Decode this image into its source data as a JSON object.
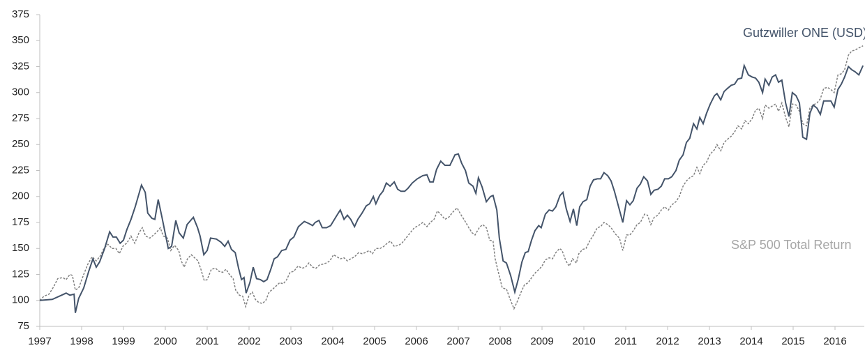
{
  "chart_data": {
    "type": "line",
    "xlim": [
      1997,
      2016.7
    ],
    "ylim": [
      75,
      375
    ],
    "xticks": [
      1997,
      1998,
      1999,
      2000,
      2001,
      2002,
      2003,
      2004,
      2005,
      2006,
      2007,
      2008,
      2009,
      2010,
      2011,
      2012,
      2013,
      2014,
      2015,
      2016
    ],
    "yticks": [
      75,
      100,
      125,
      150,
      175,
      200,
      225,
      250,
      275,
      300,
      325,
      350,
      375
    ],
    "series": [
      {
        "name": "Gutzwiller ONE (USD)",
        "color": "#44546a",
        "dashed": false,
        "x": [
          1997.0,
          1997.3,
          1997.52,
          1997.63,
          1997.72,
          1997.82,
          1997.85,
          1997.93,
          1998.05,
          1998.17,
          1998.27,
          1998.35,
          1998.43,
          1998.55,
          1998.67,
          1998.75,
          1998.83,
          1998.92,
          1999.0,
          1999.08,
          1999.18,
          1999.28,
          1999.43,
          1999.52,
          1999.58,
          1999.68,
          1999.75,
          1999.83,
          1999.92,
          1999.98,
          2000.07,
          2000.15,
          2000.25,
          2000.33,
          2000.43,
          2000.52,
          2000.67,
          2000.77,
          2000.83,
          2000.92,
          2001.0,
          2001.08,
          2001.22,
          2001.33,
          2001.42,
          2001.5,
          2001.58,
          2001.67,
          2001.75,
          2001.82,
          2001.88,
          2001.93,
          2002.02,
          2002.1,
          2002.18,
          2002.27,
          2002.35,
          2002.43,
          2002.52,
          2002.6,
          2002.68,
          2002.78,
          2002.88,
          2002.98,
          2003.07,
          2003.18,
          2003.32,
          2003.43,
          2003.52,
          2003.58,
          2003.67,
          2003.75,
          2003.85,
          2003.95,
          2004.07,
          2004.18,
          2004.27,
          2004.35,
          2004.43,
          2004.52,
          2004.6,
          2004.7,
          2004.8,
          2004.88,
          2004.97,
          2005.03,
          2005.12,
          2005.2,
          2005.28,
          2005.37,
          2005.47,
          2005.55,
          2005.63,
          2005.72,
          2005.8,
          2005.9,
          2006.02,
          2006.15,
          2006.25,
          2006.32,
          2006.4,
          2006.48,
          2006.58,
          2006.68,
          2006.8,
          2006.92,
          2007.0,
          2007.08,
          2007.17,
          2007.25,
          2007.35,
          2007.42,
          2007.48,
          2007.57,
          2007.67,
          2007.77,
          2007.83,
          2007.92,
          2007.98,
          2008.07,
          2008.15,
          2008.25,
          2008.35,
          2008.43,
          2008.52,
          2008.6,
          2008.67,
          2008.75,
          2008.83,
          2008.92,
          2008.98,
          2009.08,
          2009.17,
          2009.25,
          2009.33,
          2009.43,
          2009.5,
          2009.58,
          2009.67,
          2009.75,
          2009.83,
          2009.9,
          2009.98,
          2010.07,
          2010.15,
          2010.23,
          2010.32,
          2010.4,
          2010.48,
          2010.57,
          2010.65,
          2010.73,
          2010.83,
          2010.93,
          2011.02,
          2011.1,
          2011.18,
          2011.27,
          2011.35,
          2011.43,
          2011.52,
          2011.6,
          2011.68,
          2011.77,
          2011.85,
          2011.93,
          2012.02,
          2012.1,
          2012.2,
          2012.28,
          2012.37,
          2012.45,
          2012.53,
          2012.62,
          2012.7,
          2012.77,
          2012.85,
          2012.93,
          2013.02,
          2013.12,
          2013.18,
          2013.27,
          2013.35,
          2013.43,
          2013.52,
          2013.6,
          2013.68,
          2013.77,
          2013.83,
          2013.93,
          2014.02,
          2014.1,
          2014.18,
          2014.27,
          2014.33,
          2014.42,
          2014.5,
          2014.58,
          2014.65,
          2014.73,
          2014.82,
          2014.9,
          2014.98,
          2015.07,
          2015.15,
          2015.23,
          2015.32,
          2015.4,
          2015.48,
          2015.57,
          2015.65,
          2015.73,
          2015.82,
          2015.9,
          2015.98,
          2016.07,
          2016.15,
          2016.23,
          2016.32,
          2016.4,
          2016.48,
          2016.57,
          2016.67
        ],
        "values": [
          100,
          101,
          105,
          107,
          105,
          106,
          88,
          102,
          112,
          128,
          140,
          132,
          137,
          150,
          166,
          161,
          161,
          155,
          158,
          168,
          178,
          190,
          211,
          204,
          184,
          179,
          178,
          197,
          180,
          168,
          150,
          152,
          177,
          165,
          160,
          173,
          180,
          170,
          162,
          144,
          148,
          160,
          159,
          156,
          152,
          157,
          149,
          146,
          131,
          120,
          122,
          107,
          117,
          132,
          121,
          120,
          118,
          120,
          130,
          140,
          142,
          148,
          149,
          158,
          161,
          171,
          176,
          174,
          172,
          175,
          177,
          170,
          170,
          172,
          180,
          187,
          178,
          182,
          178,
          171,
          178,
          184,
          191,
          193,
          200,
          193,
          201,
          205,
          213,
          210,
          214,
          207,
          205,
          205,
          208,
          213,
          217,
          220,
          221,
          214,
          214,
          226,
          234,
          230,
          230,
          240,
          241,
          232,
          225,
          213,
          210,
          203,
          218,
          209,
          195,
          200,
          201,
          187,
          160,
          138,
          136,
          124,
          108,
          120,
          137,
          146,
          147,
          158,
          167,
          172,
          170,
          183,
          187,
          186,
          190,
          201,
          204,
          188,
          176,
          188,
          172,
          190,
          195,
          197,
          210,
          216,
          217,
          217,
          223,
          220,
          215,
          205,
          190,
          175,
          196,
          192,
          196,
          208,
          212,
          219,
          215,
          202,
          206,
          207,
          210,
          217,
          217,
          219,
          225,
          235,
          240,
          252,
          256,
          270,
          265,
          276,
          270,
          280,
          289,
          297,
          299,
          293,
          301,
          304,
          307,
          308,
          313,
          314,
          326,
          317,
          315,
          314,
          310,
          300,
          313,
          307,
          315,
          317,
          310,
          312,
          290,
          277,
          300,
          297,
          290,
          257,
          255,
          280,
          288,
          285,
          279,
          292,
          292,
          292,
          286,
          303,
          308,
          315,
          325,
          322,
          320,
          317,
          326
        ]
      },
      {
        "name": "S&P 500 Total Return",
        "color": "#808080",
        "dashed": true,
        "x": [
          1997.0,
          1997.1,
          1997.22,
          1997.33,
          1997.43,
          1997.55,
          1997.63,
          1997.72,
          1997.78,
          1997.85,
          1997.93,
          1998.05,
          1998.15,
          1998.25,
          1998.35,
          1998.45,
          1998.53,
          1998.63,
          1998.73,
          1998.82,
          1998.9,
          1999.0,
          1999.08,
          1999.18,
          1999.27,
          1999.37,
          1999.45,
          1999.53,
          1999.63,
          1999.72,
          1999.8,
          1999.88,
          1999.95,
          2000.05,
          2000.13,
          2000.22,
          2000.32,
          2000.38,
          2000.45,
          2000.53,
          2000.62,
          2000.7,
          2000.78,
          2000.85,
          2000.93,
          2001.0,
          2001.1,
          2001.2,
          2001.28,
          2001.37,
          2001.45,
          2001.53,
          2001.62,
          2001.68,
          2001.77,
          2001.85,
          2001.92,
          2002.0,
          2002.08,
          2002.15,
          2002.23,
          2002.32,
          2002.4,
          2002.48,
          2002.57,
          2002.65,
          2002.73,
          2002.82,
          2002.9,
          2002.98,
          2003.07,
          2003.17,
          2003.27,
          2003.35,
          2003.43,
          2003.52,
          2003.6,
          2003.68,
          2003.77,
          2003.85,
          2003.93,
          2004.02,
          2004.1,
          2004.18,
          2004.27,
          2004.35,
          2004.43,
          2004.52,
          2004.62,
          2004.7,
          2004.78,
          2004.87,
          2004.95,
          2005.03,
          2005.13,
          2005.22,
          2005.3,
          2005.38,
          2005.47,
          2005.57,
          2005.65,
          2005.75,
          2005.85,
          2005.95,
          2006.05,
          2006.15,
          2006.25,
          2006.33,
          2006.42,
          2006.5,
          2006.58,
          2006.68,
          2006.77,
          2006.87,
          2006.97,
          2007.07,
          2007.15,
          2007.25,
          2007.33,
          2007.4,
          2007.5,
          2007.58,
          2007.67,
          2007.75,
          2007.83,
          2007.88,
          2007.97,
          2008.05,
          2008.15,
          2008.23,
          2008.33,
          2008.42,
          2008.5,
          2008.58,
          2008.67,
          2008.77,
          2008.85,
          2008.93,
          2009.0,
          2009.08,
          2009.17,
          2009.25,
          2009.33,
          2009.42,
          2009.48,
          2009.57,
          2009.65,
          2009.73,
          2009.82,
          2009.88,
          2009.97,
          2010.05,
          2010.15,
          2010.23,
          2010.32,
          2010.4,
          2010.48,
          2010.57,
          2010.65,
          2010.75,
          2010.85,
          2010.93,
          2011.02,
          2011.1,
          2011.18,
          2011.27,
          2011.35,
          2011.45,
          2011.52,
          2011.6,
          2011.68,
          2011.77,
          2011.85,
          2011.93,
          2012.02,
          2012.1,
          2012.2,
          2012.28,
          2012.37,
          2012.45,
          2012.53,
          2012.62,
          2012.7,
          2012.77,
          2012.85,
          2012.93,
          2013.02,
          2013.12,
          2013.18,
          2013.27,
          2013.35,
          2013.43,
          2013.52,
          2013.6,
          2013.68,
          2013.77,
          2013.85,
          2013.93,
          2014.02,
          2014.1,
          2014.18,
          2014.27,
          2014.33,
          2014.42,
          2014.5,
          2014.58,
          2014.65,
          2014.73,
          2014.82,
          2014.9,
          2014.98,
          2015.07,
          2015.15,
          2015.23,
          2015.32,
          2015.4,
          2015.48,
          2015.57,
          2015.65,
          2015.73,
          2015.82,
          2015.9,
          2015.98,
          2016.07,
          2016.15,
          2016.23,
          2016.32,
          2016.4,
          2016.48,
          2016.57,
          2016.67
        ],
        "values": [
          100,
          104,
          106,
          113,
          121,
          122,
          120,
          125,
          124,
          110,
          112,
          125,
          135,
          142,
          138,
          143,
          150,
          154,
          150,
          150,
          145,
          153,
          155,
          162,
          155,
          165,
          170,
          162,
          160,
          163,
          166,
          170,
          162,
          160,
          148,
          153,
          148,
          138,
          132,
          140,
          144,
          141,
          138,
          130,
          119,
          120,
          130,
          131,
          128,
          127,
          130,
          125,
          121,
          110,
          105,
          104,
          94,
          105,
          108,
          101,
          98,
          97,
          100,
          108,
          111,
          114,
          117,
          116,
          120,
          127,
          128,
          133,
          131,
          132,
          136,
          132,
          131,
          134,
          135,
          136,
          138,
          144,
          142,
          140,
          141,
          138,
          140,
          142,
          146,
          145,
          146,
          148,
          145,
          150,
          150,
          152,
          155,
          157,
          152,
          153,
          155,
          160,
          165,
          170,
          172,
          175,
          171,
          175,
          178,
          186,
          183,
          178,
          180,
          185,
          189,
          182,
          177,
          170,
          165,
          163,
          170,
          173,
          170,
          158,
          157,
          140,
          125,
          112,
          111,
          102,
          92,
          100,
          108,
          115,
          117,
          123,
          127,
          130,
          133,
          139,
          141,
          140,
          146,
          150,
          148,
          138,
          133,
          140,
          136,
          145,
          149,
          150,
          158,
          163,
          170,
          171,
          175,
          173,
          170,
          164,
          160,
          148,
          163,
          163,
          167,
          173,
          175,
          183,
          182,
          173,
          180,
          182,
          187,
          190,
          187,
          192,
          195,
          200,
          210,
          215,
          218,
          220,
          228,
          222,
          230,
          233,
          241,
          245,
          250,
          244,
          252,
          255,
          258,
          262,
          268,
          265,
          273,
          270,
          275,
          283,
          285,
          275,
          288,
          285,
          287,
          289,
          282,
          290,
          276,
          267,
          289,
          288,
          282,
          270,
          268,
          285,
          288,
          290,
          294,
          304,
          305,
          303,
          300,
          317,
          318,
          322,
          336,
          340,
          341,
          343,
          345
        ]
      }
    ]
  }
}
